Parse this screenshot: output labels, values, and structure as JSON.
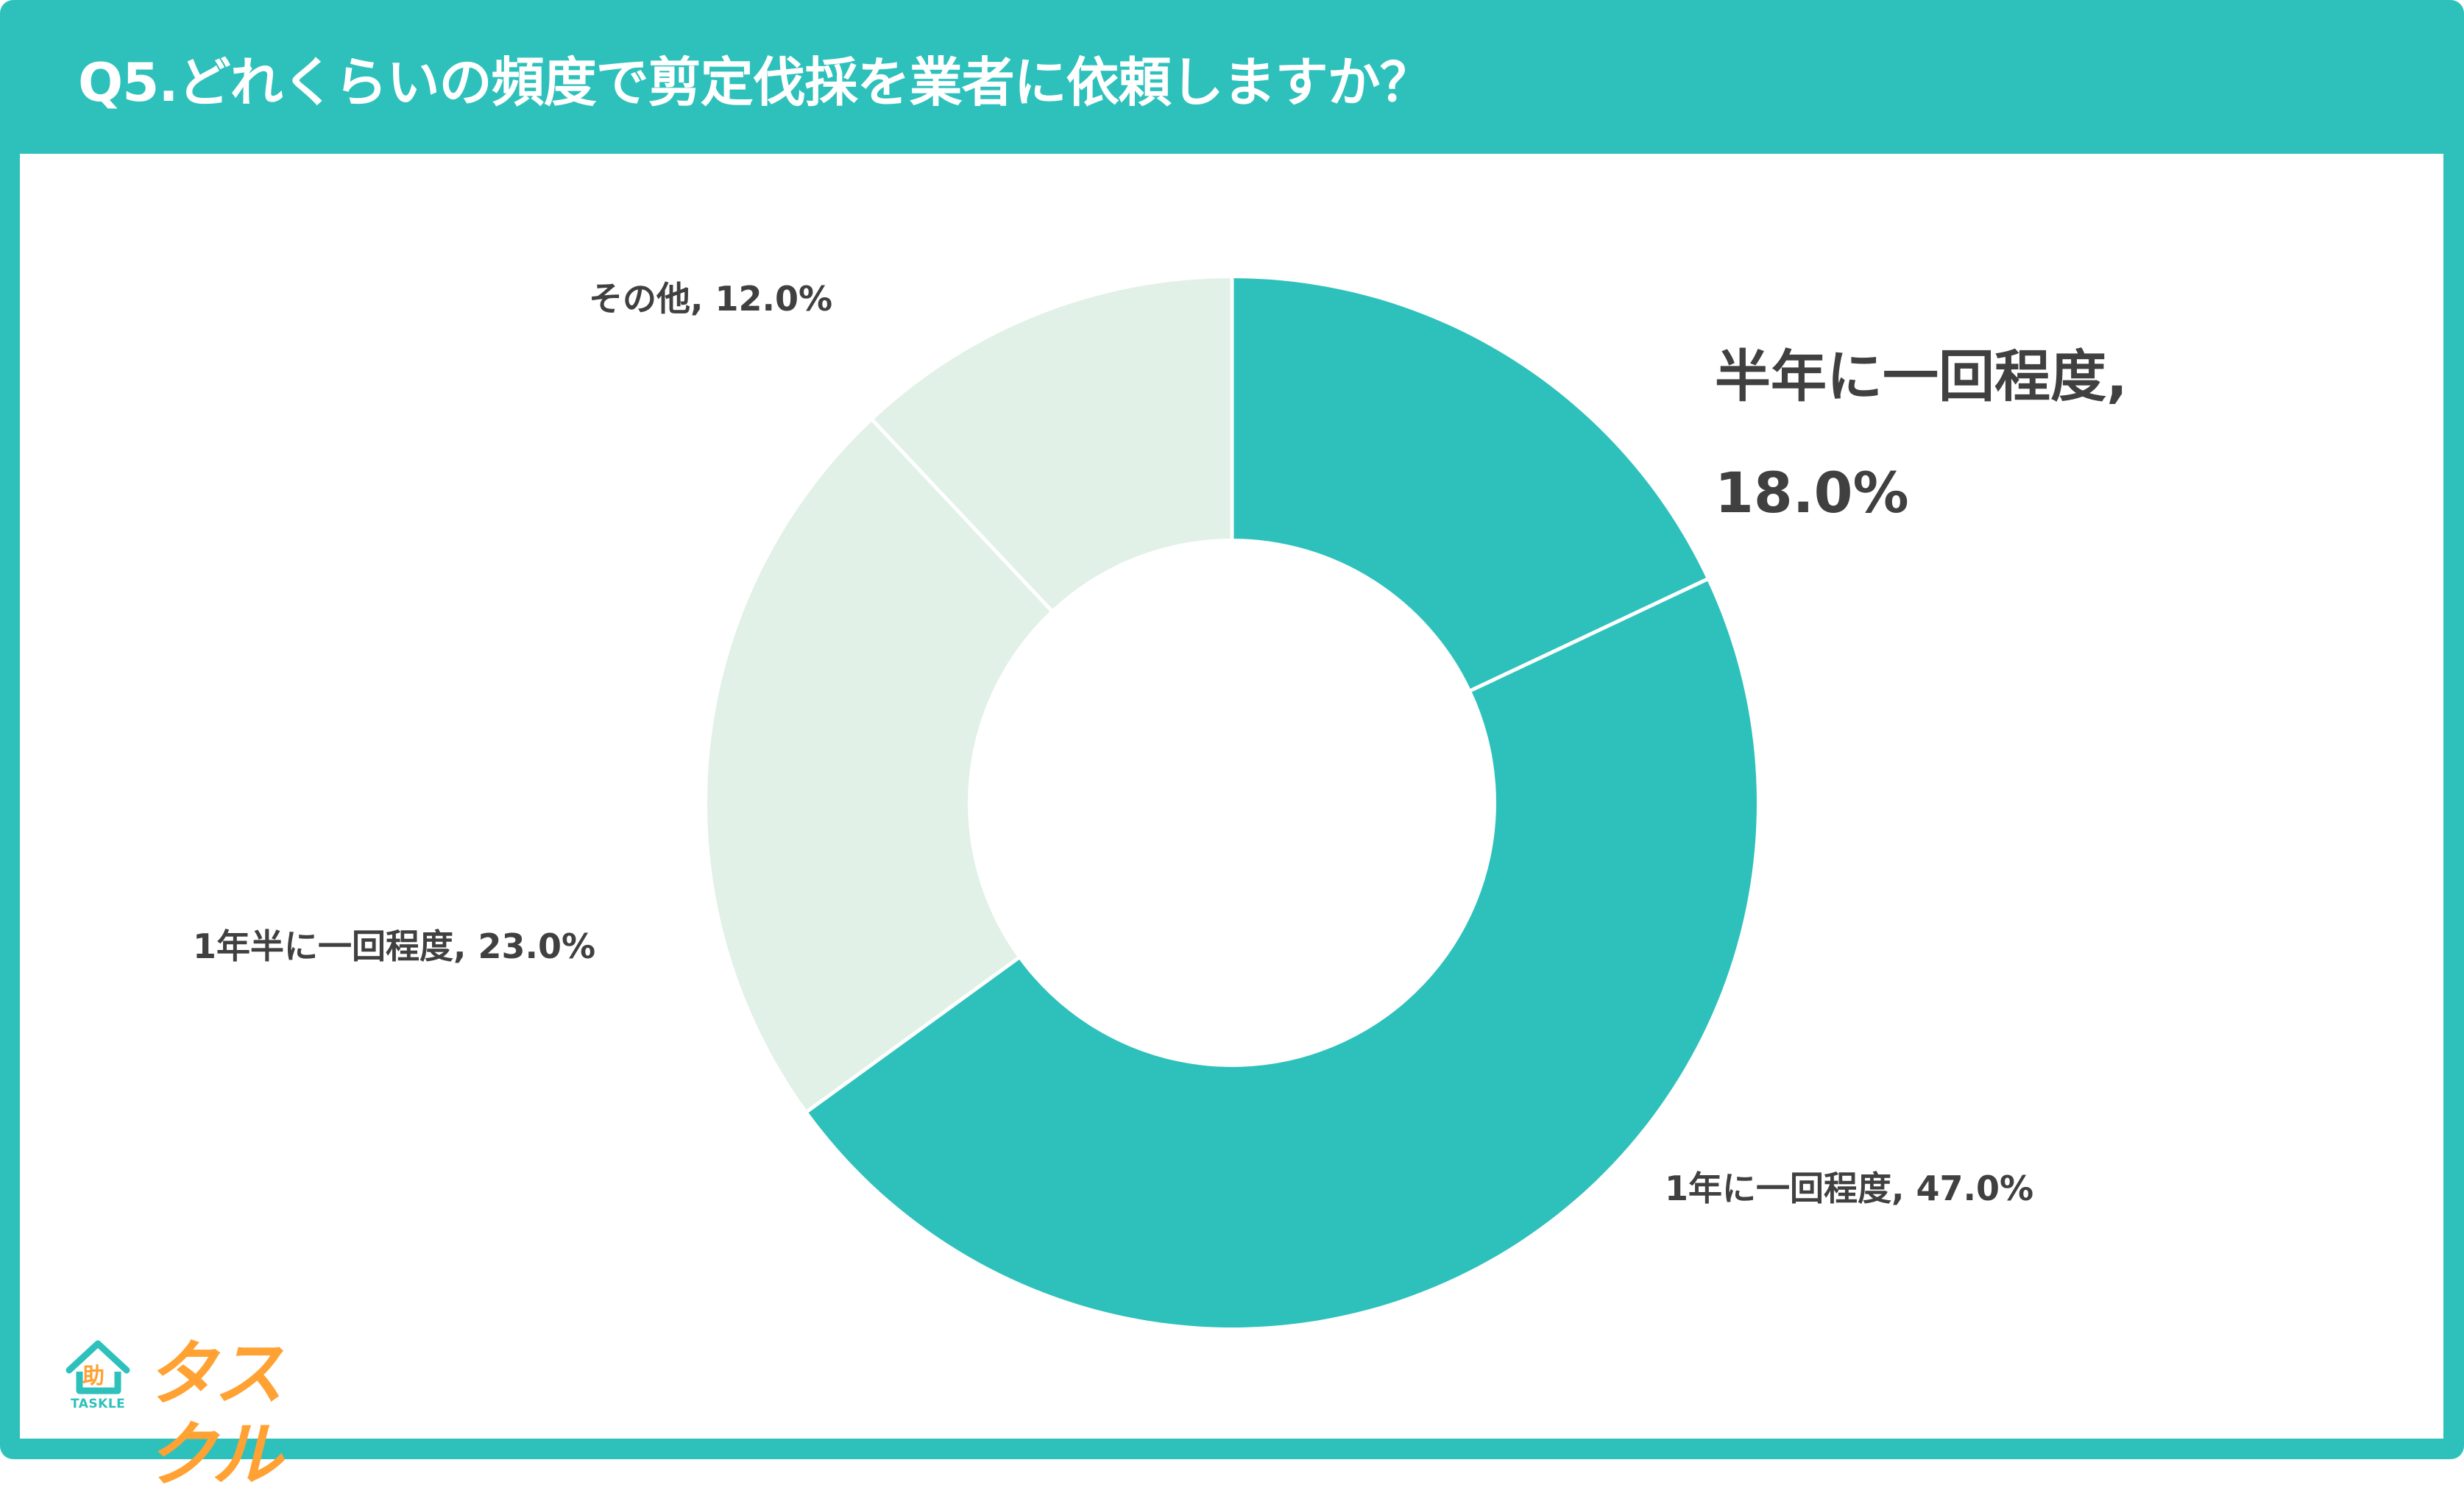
{
  "header": {
    "title": "Q5.どれくらいの頻度で剪定伐採を業者に依頼しますか？"
  },
  "colors": {
    "frame": "#2EC1BC",
    "slice_primary": "#2EC1BC",
    "slice_secondary": "#E1F1E7",
    "label_text": "#404040",
    "logo_orange": "#FFA233"
  },
  "labels": {
    "half_year_line1": "半年に一回程度,",
    "half_year_line2": "18.0%",
    "one_year": "1年に一回程度, 47.0%",
    "one_half_year": "1年半に一回程度, 23.0%",
    "other": "その他, 12.0%"
  },
  "logo": {
    "kanji": "助",
    "wordmark_en": "TASKLE",
    "wordmark_ja": "タスクル"
  },
  "chart_data": {
    "type": "pie",
    "subtype": "donut",
    "title": "Q5.どれくらいの頻度で剪定伐採を業者に依頼しますか？",
    "categories": [
      "半年に一回程度",
      "1年に一回程度",
      "1年半に一回程度",
      "その他"
    ],
    "values": [
      18.0,
      47.0,
      23.0,
      12.0
    ],
    "unit": "%",
    "colors": [
      "#2EC1BC",
      "#2EC1BC",
      "#E1F1E7",
      "#E1F1E7"
    ],
    "start_angle": "12 o'clock",
    "direction": "clockwise",
    "hole_ratio": 0.5,
    "legend": "none (data labels outside slices)"
  }
}
